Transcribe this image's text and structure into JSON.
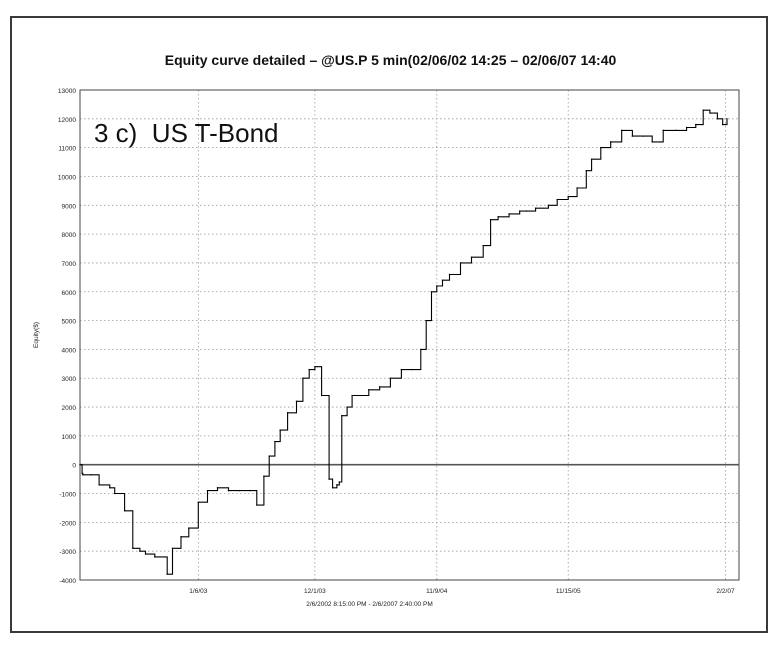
{
  "chart_data": {
    "type": "line",
    "title": "Equity curve detailed – @US.P 5 min(02/06/02 14:25 – 02/06/07 14:40",
    "panel_label": "3 c)  US T-Bond",
    "ylabel": "Equity($)",
    "xlabel": "2/6/2002 8:15:00 PM - 2/6/2007 2:40:00 PM",
    "ylim": [
      -4000,
      13000
    ],
    "yticks": [
      -4000,
      -3000,
      -2000,
      -1000,
      0,
      1000,
      2000,
      3000,
      4000,
      5000,
      6000,
      7000,
      8000,
      9000,
      10000,
      11000,
      12000,
      13000
    ],
    "xlim": [
      "2002-02-06",
      "2007-03-12"
    ],
    "xticks": [
      {
        "label": "1/6/03",
        "date": "2003-01-06"
      },
      {
        "label": "12/1/03",
        "date": "2003-12-01"
      },
      {
        "label": "11/9/04",
        "date": "2004-11-09"
      },
      {
        "label": "11/15/05",
        "date": "2005-11-15"
      },
      {
        "label": "2/2/07",
        "date": "2007-02-02"
      }
    ],
    "grid": true,
    "series": [
      {
        "color": "#000000",
        "x": [
          "2002-02-06",
          "2002-02-12",
          "2002-02-14",
          "2002-03-10",
          "2002-04-01",
          "2002-05-01",
          "2002-05-15",
          "2002-06-12",
          "2002-07-05",
          "2002-07-25",
          "2002-08-10",
          "2002-09-05",
          "2002-10-10",
          "2002-10-25",
          "2002-11-18",
          "2002-12-10",
          "2003-01-06",
          "2003-02-01",
          "2003-03-01",
          "2003-04-01",
          "2003-05-01",
          "2003-06-01",
          "2003-06-20",
          "2003-07-10",
          "2003-07-25",
          "2003-08-10",
          "2003-08-25",
          "2003-09-15",
          "2003-10-10",
          "2003-10-28",
          "2003-11-15",
          "2003-12-01",
          "2003-12-20",
          "2004-01-10",
          "2004-01-20",
          "2004-02-01",
          "2004-02-08",
          "2004-02-15",
          "2004-03-01",
          "2004-03-15",
          "2004-04-10",
          "2004-05-01",
          "2004-06-01",
          "2004-07-01",
          "2004-08-01",
          "2004-09-01",
          "2004-09-25",
          "2004-10-10",
          "2004-10-25",
          "2004-11-09",
          "2004-11-25",
          "2004-12-15",
          "2005-01-15",
          "2005-02-15",
          "2005-03-20",
          "2005-04-10",
          "2005-05-01",
          "2005-06-01",
          "2005-07-01",
          "2005-07-20",
          "2005-08-15",
          "2005-09-20",
          "2005-10-15",
          "2005-11-15",
          "2005-12-10",
          "2006-01-05",
          "2006-01-20",
          "2006-02-15",
          "2006-03-15",
          "2006-04-15",
          "2006-05-15",
          "2006-06-15",
          "2006-07-10",
          "2006-08-10",
          "2006-09-15",
          "2006-10-15",
          "2006-11-10",
          "2006-12-01",
          "2006-12-20",
          "2007-01-10",
          "2007-01-25",
          "2007-02-06"
        ],
        "y": [
          0,
          -300,
          -350,
          -350,
          -700,
          -800,
          -1000,
          -1600,
          -2900,
          -3000,
          -3100,
          -3200,
          -3800,
          -2900,
          -2500,
          -2200,
          -1300,
          -900,
          -800,
          -900,
          -900,
          -900,
          -1400,
          -400,
          300,
          800,
          1200,
          1800,
          2200,
          3000,
          3300,
          3400,
          2400,
          -500,
          -800,
          -700,
          -600,
          1700,
          2000,
          2400,
          2400,
          2600,
          2700,
          3000,
          3300,
          3300,
          4000,
          5000,
          6000,
          6200,
          6400,
          6600,
          7000,
          7200,
          7600,
          8500,
          8600,
          8700,
          8800,
          8800,
          8900,
          9000,
          9200,
          9300,
          9600,
          10200,
          10600,
          11000,
          11200,
          11600,
          11400,
          11400,
          11200,
          11600,
          11600,
          11700,
          11800,
          12300,
          12200,
          12000,
          11800,
          12000
        ]
      }
    ]
  }
}
